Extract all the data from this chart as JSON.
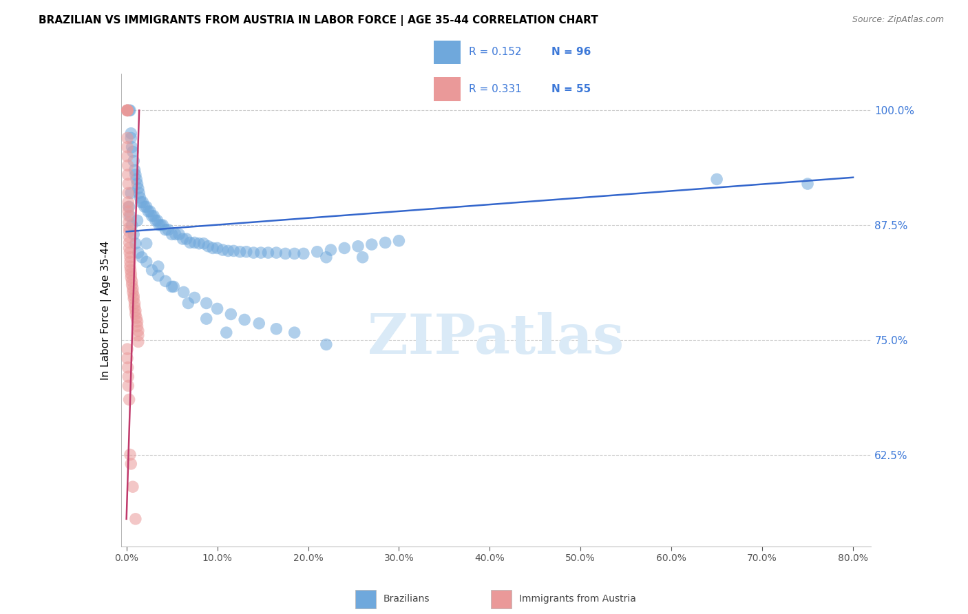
{
  "title": "BRAZILIAN VS IMMIGRANTS FROM AUSTRIA IN LABOR FORCE | AGE 35-44 CORRELATION CHART",
  "source": "Source: ZipAtlas.com",
  "xlabel_ticks": [
    "0.0%",
    "10.0%",
    "20.0%",
    "30.0%",
    "40.0%",
    "50.0%",
    "60.0%",
    "70.0%",
    "80.0%"
  ],
  "xlabel_vals": [
    0.0,
    0.1,
    0.2,
    0.3,
    0.4,
    0.5,
    0.6,
    0.7,
    0.8
  ],
  "ylabel": "In Labor Force | Age 35-44",
  "ylabel_ticks": [
    "62.5%",
    "75.0%",
    "87.5%",
    "100.0%"
  ],
  "ylabel_vals": [
    0.625,
    0.75,
    0.875,
    1.0
  ],
  "ylim": [
    0.525,
    1.04
  ],
  "xlim": [
    -0.006,
    0.82
  ],
  "blue_color": "#6fa8dc",
  "pink_color": "#ea9999",
  "trend_blue": "#3366cc",
  "trend_pink": "#c0396b",
  "watermark": "ZIPatlas",
  "watermark_color": "#daeaf7",
  "title_fontsize": 11,
  "source_fontsize": 9,
  "tick_color": "#3c78d8",
  "grid_color": "#c8c8c8",
  "brazil_x": [
    0.003,
    0.004,
    0.005,
    0.005,
    0.006,
    0.007,
    0.008,
    0.009,
    0.01,
    0.011,
    0.012,
    0.013,
    0.014,
    0.015,
    0.016,
    0.018,
    0.02,
    0.022,
    0.024,
    0.026,
    0.028,
    0.03,
    0.032,
    0.034,
    0.036,
    0.038,
    0.04,
    0.043,
    0.046,
    0.05,
    0.054,
    0.058,
    0.062,
    0.066,
    0.07,
    0.075,
    0.08,
    0.085,
    0.09,
    0.095,
    0.1,
    0.106,
    0.112,
    0.118,
    0.125,
    0.132,
    0.14,
    0.148,
    0.156,
    0.165,
    0.175,
    0.185,
    0.195,
    0.21,
    0.225,
    0.24,
    0.255,
    0.27,
    0.285,
    0.3,
    0.22,
    0.26,
    0.003,
    0.004,
    0.006,
    0.008,
    0.01,
    0.013,
    0.017,
    0.022,
    0.028,
    0.035,
    0.043,
    0.052,
    0.063,
    0.075,
    0.088,
    0.1,
    0.115,
    0.13,
    0.146,
    0.165,
    0.185,
    0.005,
    0.012,
    0.022,
    0.035,
    0.05,
    0.068,
    0.088,
    0.11,
    0.22,
    0.65,
    0.75
  ],
  "brazil_y": [
    1.0,
    1.0,
    0.975,
    0.97,
    0.96,
    0.955,
    0.945,
    0.935,
    0.93,
    0.925,
    0.92,
    0.915,
    0.91,
    0.905,
    0.9,
    0.9,
    0.895,
    0.895,
    0.89,
    0.89,
    0.885,
    0.885,
    0.88,
    0.88,
    0.875,
    0.875,
    0.875,
    0.87,
    0.87,
    0.865,
    0.865,
    0.865,
    0.86,
    0.86,
    0.856,
    0.856,
    0.855,
    0.855,
    0.852,
    0.85,
    0.85,
    0.848,
    0.847,
    0.847,
    0.846,
    0.846,
    0.845,
    0.845,
    0.845,
    0.845,
    0.844,
    0.844,
    0.844,
    0.846,
    0.848,
    0.85,
    0.852,
    0.854,
    0.856,
    0.858,
    0.84,
    0.84,
    0.895,
    0.885,
    0.875,
    0.865,
    0.855,
    0.845,
    0.84,
    0.835,
    0.826,
    0.82,
    0.814,
    0.808,
    0.802,
    0.796,
    0.79,
    0.784,
    0.778,
    0.772,
    0.768,
    0.762,
    0.758,
    0.91,
    0.88,
    0.855,
    0.83,
    0.808,
    0.79,
    0.773,
    0.758,
    0.745,
    0.925,
    0.92
  ],
  "austria_x": [
    0.001,
    0.001,
    0.001,
    0.001,
    0.001,
    0.001,
    0.001,
    0.001,
    0.0015,
    0.0015,
    0.002,
    0.002,
    0.002,
    0.002,
    0.002,
    0.0025,
    0.0025,
    0.003,
    0.003,
    0.003,
    0.003,
    0.003,
    0.0035,
    0.004,
    0.004,
    0.004,
    0.0045,
    0.005,
    0.005,
    0.006,
    0.006,
    0.007,
    0.007,
    0.008,
    0.008,
    0.009,
    0.009,
    0.01,
    0.01,
    0.011,
    0.012,
    0.012,
    0.013,
    0.013,
    0.013,
    0.001,
    0.001,
    0.0015,
    0.002,
    0.002,
    0.003,
    0.004,
    0.005,
    0.007,
    0.01
  ],
  "austria_y": [
    1.0,
    1.0,
    1.0,
    1.0,
    1.0,
    0.97,
    0.96,
    0.95,
    0.94,
    0.93,
    0.92,
    0.91,
    0.9,
    0.895,
    0.89,
    0.885,
    0.878,
    0.872,
    0.868,
    0.862,
    0.856,
    0.85,
    0.845,
    0.84,
    0.835,
    0.83,
    0.826,
    0.822,
    0.818,
    0.814,
    0.81,
    0.806,
    0.802,
    0.798,
    0.795,
    0.79,
    0.786,
    0.782,
    0.778,
    0.774,
    0.77,
    0.765,
    0.76,
    0.755,
    0.748,
    0.74,
    0.73,
    0.72,
    0.71,
    0.7,
    0.685,
    0.625,
    0.615,
    0.59,
    0.555
  ],
  "blue_trend_x": [
    0.0,
    0.8
  ],
  "blue_trend_y": [
    0.868,
    0.927
  ],
  "pink_trend_x": [
    0.0,
    0.014
  ],
  "pink_trend_y": [
    0.555,
    1.0
  ]
}
